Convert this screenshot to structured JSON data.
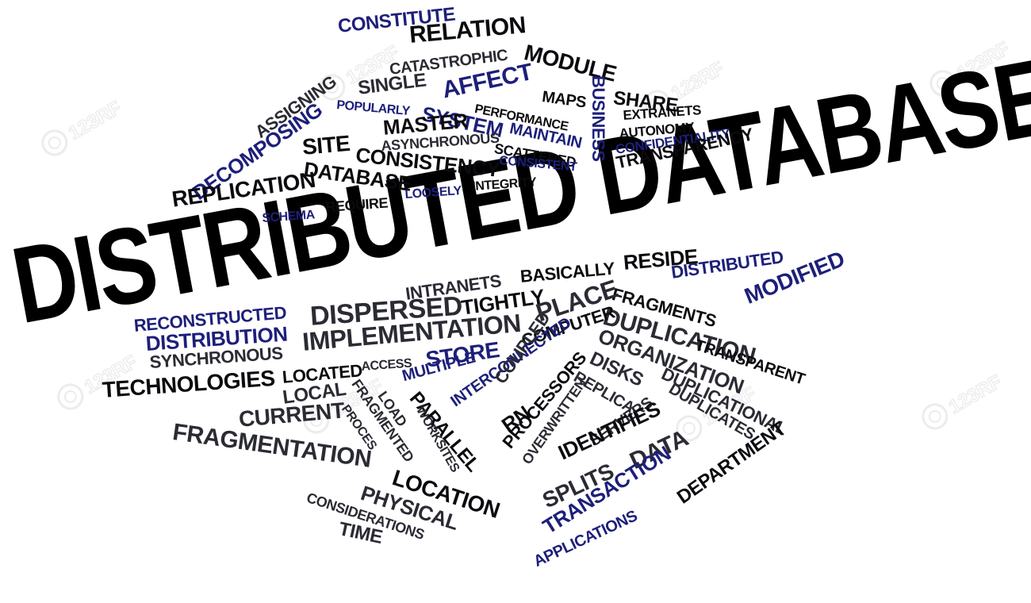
{
  "title": "DISTRIBUTED DATABASE",
  "words": [
    "CONSTITUTE",
    "RELATION",
    "CATASTROPHIC",
    "MODULE",
    "AFFECT",
    "SINGLE",
    "SYSTEM",
    "POPULARLY",
    "ASSIGNING",
    "DECOMPOSING",
    "PERFORMANCE",
    "MAPS",
    "BUSINESS",
    "SHARE",
    "EXTRANETS",
    "AUTONOMY",
    "MASTER",
    "MAINTAIN",
    "ASYNCHRONOUS",
    "SCATTERED",
    "CONFIDENTIALITY",
    "SITE",
    "CONSISTENCY",
    "CONSISTENT",
    "TRANSPARENCY",
    "DATABASE",
    "REPLICATION",
    "LOOSELY",
    "INTEGRITY",
    "SCHEMA",
    "REQUIRE",
    "RESIDE",
    "BASICALLY",
    "INTRANETS",
    "DISTRIBUTED",
    "MODIFIED",
    "FRAGMENTS",
    "TIGHTLY",
    "DISPERSED",
    "RECONSTRUCTED",
    "PLACE",
    "DUPLICATION",
    "DISTRIBUTION",
    "IMPLEMENTATION",
    "COMPUTER",
    "ORGANIZATION",
    "TRANSPARENT",
    "SYNCHRONOUS",
    "ACCESS",
    "STORE",
    "INTERCONNECTED",
    "DISKS",
    "DUPLICATIONAL",
    "LOCATED",
    "MULTIPLE",
    "TECHNOLOGIES",
    "LOCAL",
    "LOAD",
    "COUPLED",
    "REPLICA",
    "DUPLICATES",
    "FRAGMENTED",
    "PARALLEL",
    "WORKSITES",
    "PROCES",
    "CURRENT",
    "RN",
    "PROCESSORS",
    "OVERWRITTEN",
    "SERVERS",
    "IDENTIFIES",
    "FRAGMENTATION",
    "LOCATION",
    "SPLITS",
    "DATA",
    "DEPARTMENT",
    "CONSIDERATIONS",
    "PHYSICAL",
    "TRANSACTION",
    "TIME",
    "APPLICATIONS"
  ],
  "watermark": "123RF",
  "watermark_icon": "camera-lens-icon"
}
